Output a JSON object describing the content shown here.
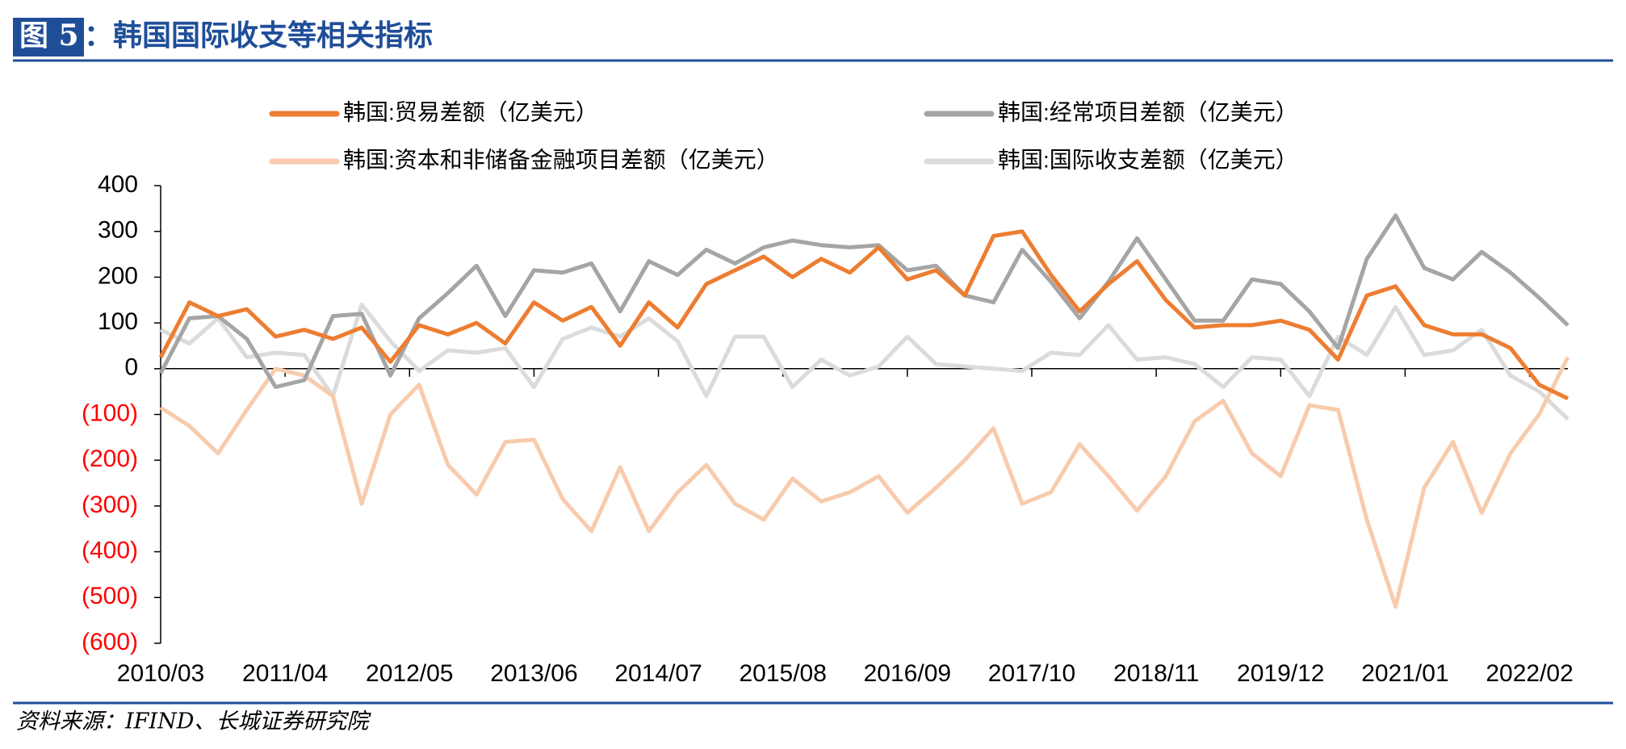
{
  "header": {
    "figure_label": "图 5",
    "title": "：韩国国际收支等相关指标"
  },
  "source": "资料来源：IFIND、长城证券研究院",
  "chart_data": {
    "type": "line",
    "x": [
      "2010/03",
      "2010/06",
      "2010/09",
      "2010/12",
      "2011/03",
      "2011/06",
      "2011/09",
      "2011/12",
      "2012/03",
      "2012/06",
      "2012/09",
      "2012/12",
      "2013/03",
      "2013/06",
      "2013/09",
      "2013/12",
      "2014/03",
      "2014/06",
      "2014/09",
      "2014/12",
      "2015/03",
      "2015/06",
      "2015/09",
      "2015/12",
      "2016/03",
      "2016/06",
      "2016/09",
      "2016/12",
      "2017/03",
      "2017/06",
      "2017/09",
      "2017/12",
      "2018/03",
      "2018/06",
      "2018/09",
      "2018/12",
      "2019/03",
      "2019/06",
      "2019/09",
      "2019/12",
      "2020/03",
      "2020/06",
      "2020/09",
      "2020/12",
      "2021/03",
      "2021/06",
      "2021/09",
      "2021/12",
      "2022/03",
      "2022/06"
    ],
    "series": [
      {
        "name": "韩国:贸易差额（亿美元）",
        "color": "#ed7d31",
        "values": [
          25,
          145,
          115,
          130,
          70,
          85,
          65,
          90,
          15,
          95,
          75,
          100,
          55,
          145,
          105,
          135,
          50,
          145,
          90,
          185,
          215,
          245,
          200,
          240,
          210,
          265,
          195,
          215,
          160,
          290,
          300,
          205,
          125,
          185,
          235,
          150,
          90,
          95,
          95,
          105,
          85,
          20,
          160,
          180,
          95,
          75,
          75,
          45,
          -35,
          -65
        ]
      },
      {
        "name": "韩国:经常项目差额（亿美元）",
        "color": "#a5a5a5",
        "values": [
          -10,
          110,
          115,
          65,
          -40,
          -25,
          115,
          120,
          -15,
          110,
          165,
          225,
          115,
          215,
          210,
          230,
          125,
          235,
          205,
          260,
          230,
          265,
          280,
          270,
          265,
          270,
          215,
          225,
          160,
          145,
          260,
          190,
          110,
          190,
          285,
          195,
          105,
          105,
          195,
          185,
          125,
          45,
          240,
          335,
          220,
          195,
          255,
          210,
          155,
          95
        ]
      },
      {
        "name": "韩国:资本和非储备金融项目差额（亿美元）",
        "color": "#f8cbad",
        "values": [
          -85,
          -125,
          -185,
          -90,
          0,
          -15,
          -60,
          -295,
          -100,
          -35,
          -210,
          -275,
          -160,
          -155,
          -285,
          -355,
          -215,
          -355,
          -270,
          -210,
          -295,
          -330,
          -240,
          -290,
          -270,
          -235,
          -315,
          -260,
          -200,
          -130,
          -295,
          -270,
          -165,
          -235,
          -310,
          -235,
          -115,
          -70,
          -185,
          -235,
          -80,
          -90,
          -330,
          -520,
          -260,
          -160,
          -315,
          -185,
          -100,
          25
        ]
      },
      {
        "name": "韩国:国际收支差额（亿美元）",
        "color": "#dbdbdb",
        "values": [
          85,
          55,
          110,
          25,
          35,
          30,
          -60,
          140,
          60,
          -5,
          40,
          35,
          45,
          -40,
          65,
          90,
          70,
          110,
          60,
          -60,
          70,
          70,
          -40,
          20,
          -15,
          5,
          70,
          10,
          5,
          0,
          -5,
          35,
          30,
          95,
          20,
          25,
          10,
          -40,
          25,
          20,
          -60,
          70,
          30,
          135,
          30,
          40,
          85,
          -15,
          -50,
          -110
        ]
      }
    ],
    "xticks": [
      "2010/03",
      "2011/04",
      "2012/05",
      "2013/06",
      "2014/07",
      "2015/08",
      "2016/09",
      "2017/10",
      "2018/11",
      "2019/12",
      "2021/01",
      "2022/02"
    ],
    "ylim": [
      -600,
      400
    ],
    "yticks": [
      {
        "value": -600,
        "label": "(600)"
      },
      {
        "value": -500,
        "label": "(500)"
      },
      {
        "value": -400,
        "label": "(400)"
      },
      {
        "value": -300,
        "label": "(300)"
      },
      {
        "value": -200,
        "label": "(200)"
      },
      {
        "value": -100,
        "label": "(100)"
      },
      0,
      100,
      200,
      300,
      400
    ],
    "negative_tick_color": "#ff0000",
    "grid": false
  }
}
